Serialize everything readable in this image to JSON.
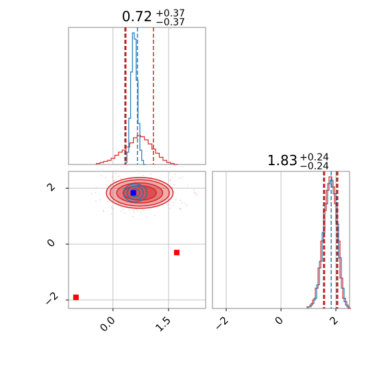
{
  "chart_data": {
    "type": "corner",
    "colors": {
      "posterior": "#d62728",
      "reference": "#1f77b4",
      "marker": "#0000ff",
      "grid": "#b0b0b0"
    },
    "panels": [
      {
        "id": "hist-param-1",
        "type": "step-histogram",
        "title_value": "0.72",
        "title_upper": "+0.37",
        "title_lower": "−0.37",
        "xlim": [
          -1.2,
          2.5
        ],
        "x_gridlines": [
          0.0,
          1.5
        ],
        "quantile_lines": {
          "red": [
            0.35,
            1.09
          ],
          "red_dark": [
            0.35
          ],
          "blue": [
            0.66
          ]
        },
        "series": [
          {
            "color": "red",
            "x": [
              -0.4,
              -0.3,
              -0.2,
              -0.1,
              0.0,
              0.1,
              0.2,
              0.3,
              0.4,
              0.5,
              0.6,
              0.7,
              0.8,
              0.9,
              1.0,
              1.1,
              1.2,
              1.3,
              1.4,
              1.5,
              1.6,
              1.7
            ],
            "values": [
              1,
              2,
              3,
              4,
              6,
              9,
              12,
              14,
              17,
              21,
              26,
              28,
              27,
              24,
              20,
              15,
              11,
              7,
              4,
              2,
              1,
              0
            ]
          },
          {
            "color": "blue",
            "x": [
              0.35,
              0.4,
              0.45,
              0.5,
              0.55,
              0.6,
              0.65,
              0.7,
              0.75,
              0.8,
              0.85
            ],
            "values": [
              2,
              12,
              45,
              90,
              128,
              122,
              82,
              40,
              14,
              4,
              0
            ]
          }
        ]
      },
      {
        "id": "hist-param-2",
        "type": "step-histogram",
        "title_value": "1.83",
        "title_upper": "+0.24",
        "title_lower": "−0.24",
        "xlim": [
          -2.5,
          2.5
        ],
        "xticks": [
          "−2",
          "0",
          "2"
        ],
        "xtick_values": [
          -2,
          0,
          2
        ],
        "x_gridlines": [
          -2,
          0,
          2
        ],
        "quantile_lines": {
          "red": [
            1.59,
            2.07
          ],
          "red_dark": [
            1.59,
            2.07
          ],
          "blue": [
            1.83
          ]
        },
        "series": [
          {
            "color": "red",
            "x": [
              1.0,
              1.1,
              1.2,
              1.3,
              1.4,
              1.5,
              1.6,
              1.7,
              1.8,
              1.9,
              2.0,
              2.1,
              2.2,
              2.3,
              2.4,
              2.5
            ],
            "values": [
              1,
              2,
              5,
              12,
              24,
              40,
              58,
              70,
              78,
              72,
              62,
              40,
              18,
              6,
              2,
              0
            ]
          },
          {
            "color": "blue",
            "x": [
              1.05,
              1.15,
              1.25,
              1.35,
              1.45,
              1.55,
              1.65,
              1.75,
              1.85,
              1.95,
              2.05,
              2.15,
              2.25,
              2.35,
              2.45
            ],
            "values": [
              1,
              3,
              6,
              14,
              28,
              45,
              62,
              74,
              76,
              68,
              50,
              30,
              12,
              4,
              1
            ]
          }
        ]
      },
      {
        "id": "contour-joint",
        "type": "contour",
        "xlim": [
          -1.2,
          2.5
        ],
        "ylim": [
          -2.3,
          2.6
        ],
        "xticks": [
          "0.0",
          "1.5"
        ],
        "xtick_values": [
          0.0,
          1.5
        ],
        "yticks": [
          "−2",
          "0",
          "2"
        ],
        "ytick_values": [
          -2,
          0,
          2
        ],
        "red_levels": [
          {
            "cx": 0.72,
            "cy": 1.83,
            "rx": 0.9,
            "ry": 0.55,
            "alpha": 0.25
          },
          {
            "cx": 0.72,
            "cy": 1.83,
            "rx": 0.8,
            "ry": 0.47,
            "alpha": 0.45
          },
          {
            "cx": 0.72,
            "cy": 1.83,
            "rx": 0.62,
            "ry": 0.36,
            "alpha": 0.65
          },
          {
            "cx": 0.72,
            "cy": 1.83,
            "rx": 0.45,
            "ry": 0.26,
            "alpha": 0.85
          }
        ],
        "blue_levels": [
          {
            "cx": 0.6,
            "cy": 1.83,
            "rx": 0.32,
            "ry": 0.32
          },
          {
            "cx": 0.6,
            "cy": 1.83,
            "rx": 0.22,
            "ry": 0.24
          },
          {
            "cx": 0.6,
            "cy": 1.83,
            "rx": 0.12,
            "ry": 0.14
          }
        ],
        "blue_marker": {
          "x": 0.55,
          "y": 1.83
        },
        "red_markers": [
          {
            "x": 1.72,
            "y": -0.3
          },
          {
            "x": -1.0,
            "y": -1.9
          }
        ]
      }
    ]
  }
}
